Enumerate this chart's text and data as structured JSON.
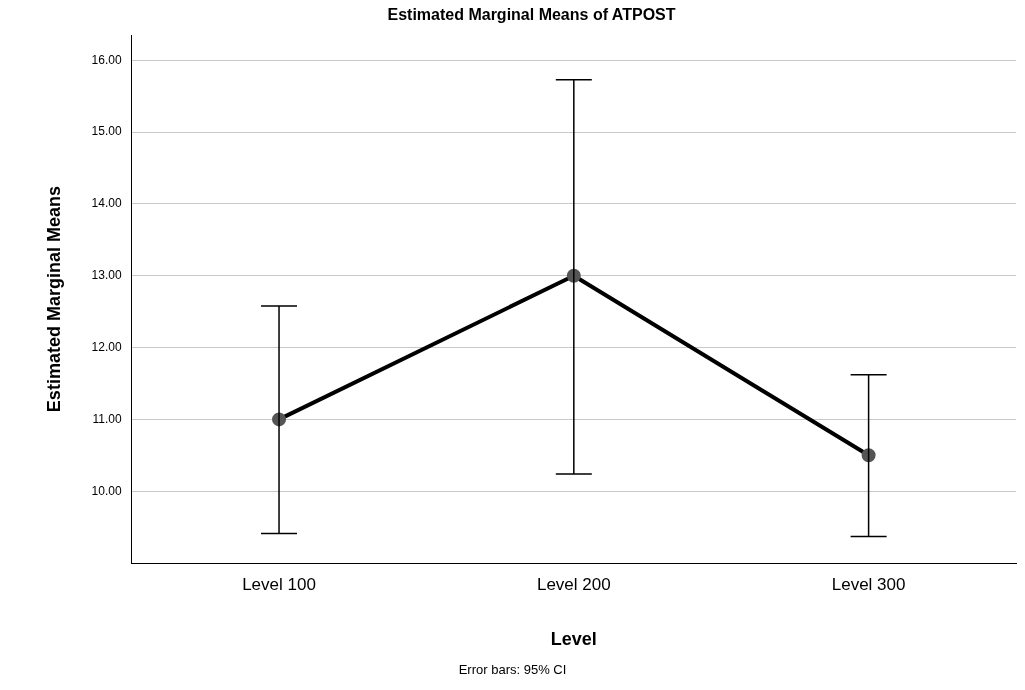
{
  "chart_data": {
    "type": "line",
    "title": "Estimated Marginal Means of ATPOST",
    "xlabel": "Level",
    "ylabel": "Estimated Marginal Means",
    "categories": [
      "Level 100",
      "Level 200",
      "Level 300"
    ],
    "series": [
      {
        "color": "#000000",
        "values": [
          11.0,
          13.0,
          10.5
        ],
        "errors": [
          [
            9.41,
            12.58
          ],
          [
            10.24,
            15.73
          ],
          [
            9.37,
            11.62
          ]
        ]
      }
    ],
    "ylim": [
      9.0,
      16.35
    ],
    "yticks": [
      {
        "value": 10,
        "label": "10.00"
      },
      {
        "value": 11,
        "label": "11.00"
      },
      {
        "value": 12,
        "label": "12.00"
      },
      {
        "value": 13,
        "label": "13.00"
      },
      {
        "value": 14,
        "label": "14.00"
      },
      {
        "value": 15,
        "label": "15.00"
      },
      {
        "value": 16,
        "label": "16.00"
      }
    ],
    "grid": "y",
    "legend": false,
    "marker": "circle",
    "line_style": "solid",
    "annotations": [
      "Error bars: 95% CI"
    ]
  }
}
